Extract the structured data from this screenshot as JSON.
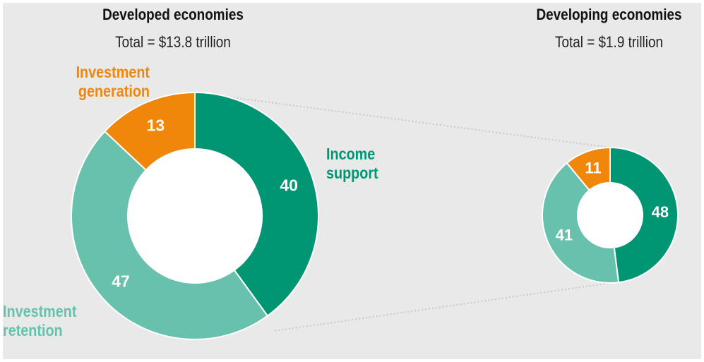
{
  "colors": {
    "income_support": "#009673",
    "investment_retention": "#67c1ad",
    "investment_generation": "#f0870a",
    "background": "#e9e9e9"
  },
  "developed": {
    "title": "Developed economies",
    "total": "Total = $13.8 trillion"
  },
  "developing": {
    "title": "Developing economies",
    "total": "Total = $1.9 trillion"
  },
  "labels": {
    "investment_generation_l1": "Investment",
    "investment_generation_l2": "generation",
    "income_support_l1": "Income",
    "income_support_l2": "support",
    "investment_retention_l1": "Investment",
    "investment_retention_l2": "retention"
  },
  "chart_data": [
    {
      "type": "pie",
      "title": "Developed economies",
      "subtitle": "Total = $13.8 trillion",
      "categories": [
        "Income support",
        "Investment retention",
        "Investment generation"
      ],
      "values": [
        40,
        47,
        13
      ]
    },
    {
      "type": "pie",
      "title": "Developing economies",
      "subtitle": "Total = $1.9 trillion",
      "categories": [
        "Income support",
        "Investment retention",
        "Investment generation"
      ],
      "values": [
        48,
        41,
        11
      ]
    }
  ]
}
